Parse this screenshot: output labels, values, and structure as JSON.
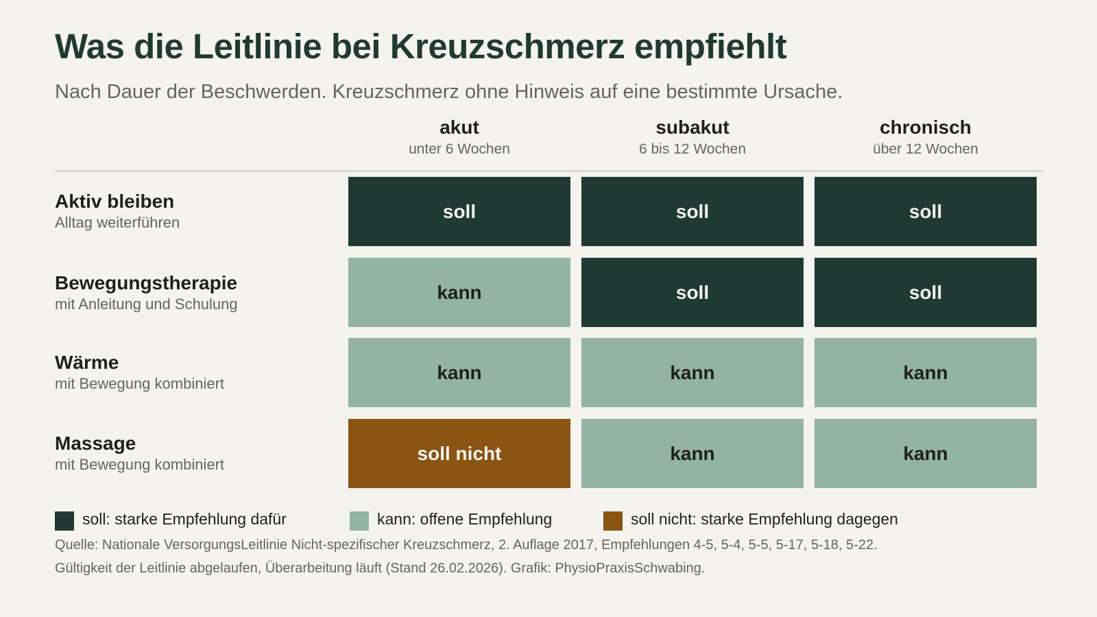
{
  "title": "Was die Leitlinie bei Kreuzschmerz empfiehlt",
  "subtitle": "Nach Dauer der Beschwerden. Kreuzschmerz ohne Hinweis auf eine bestimmte Ursache.",
  "colors": {
    "soll": "#1f3a33",
    "kann": "#93b3a5",
    "soll_nicht": "#8a5413",
    "text_on_dark": "#f5f3ee",
    "text_on_light": "#1f1f1f"
  },
  "chart_data": {
    "type": "table",
    "columns": [
      {
        "name": "akut",
        "range": "unter 6 Wochen"
      },
      {
        "name": "subakut",
        "range": "6 bis 12 Wochen"
      },
      {
        "name": "chronisch",
        "range": "über 12 Wochen"
      }
    ],
    "rows": [
      {
        "name": "Aktiv bleiben",
        "desc": "Alltag weiterführen",
        "values": [
          "soll",
          "soll",
          "soll"
        ],
        "levels": [
          "soll",
          "soll",
          "soll"
        ]
      },
      {
        "name": "Bewegungstherapie",
        "desc": "mit Anleitung und Schulung",
        "values": [
          "kann",
          "soll",
          "soll"
        ],
        "levels": [
          "kann",
          "soll",
          "soll"
        ]
      },
      {
        "name": "Wärme",
        "desc": "mit Bewegung kombiniert",
        "values": [
          "kann",
          "kann",
          "kann"
        ],
        "levels": [
          "kann",
          "kann",
          "kann"
        ]
      },
      {
        "name": "Massage",
        "desc": "mit Bewegung kombiniert",
        "values": [
          "soll nicht",
          "kann",
          "kann"
        ],
        "levels": [
          "soll_nicht",
          "kann",
          "kann"
        ]
      }
    ]
  },
  "legend": [
    {
      "key": "soll",
      "label": "soll: starke Empfehlung dafür"
    },
    {
      "key": "kann",
      "label": "kann: offene Empfehlung"
    },
    {
      "key": "soll_nicht",
      "label": "soll nicht: starke Empfehlung dagegen"
    }
  ],
  "source": {
    "line1": "Quelle: Nationale VersorgungsLeitlinie Nicht-spezifischer Kreuzschmerz, 2. Auflage 2017, Empfehlungen 4-5, 5-4, 5-5, 5-17, 5-18, 5-22.",
    "line2": "Gültigkeit der Leitlinie abgelaufen, Überarbeitung läuft (Stand 26.02.2026). Grafik: PhysioPraxisSchwabing."
  }
}
